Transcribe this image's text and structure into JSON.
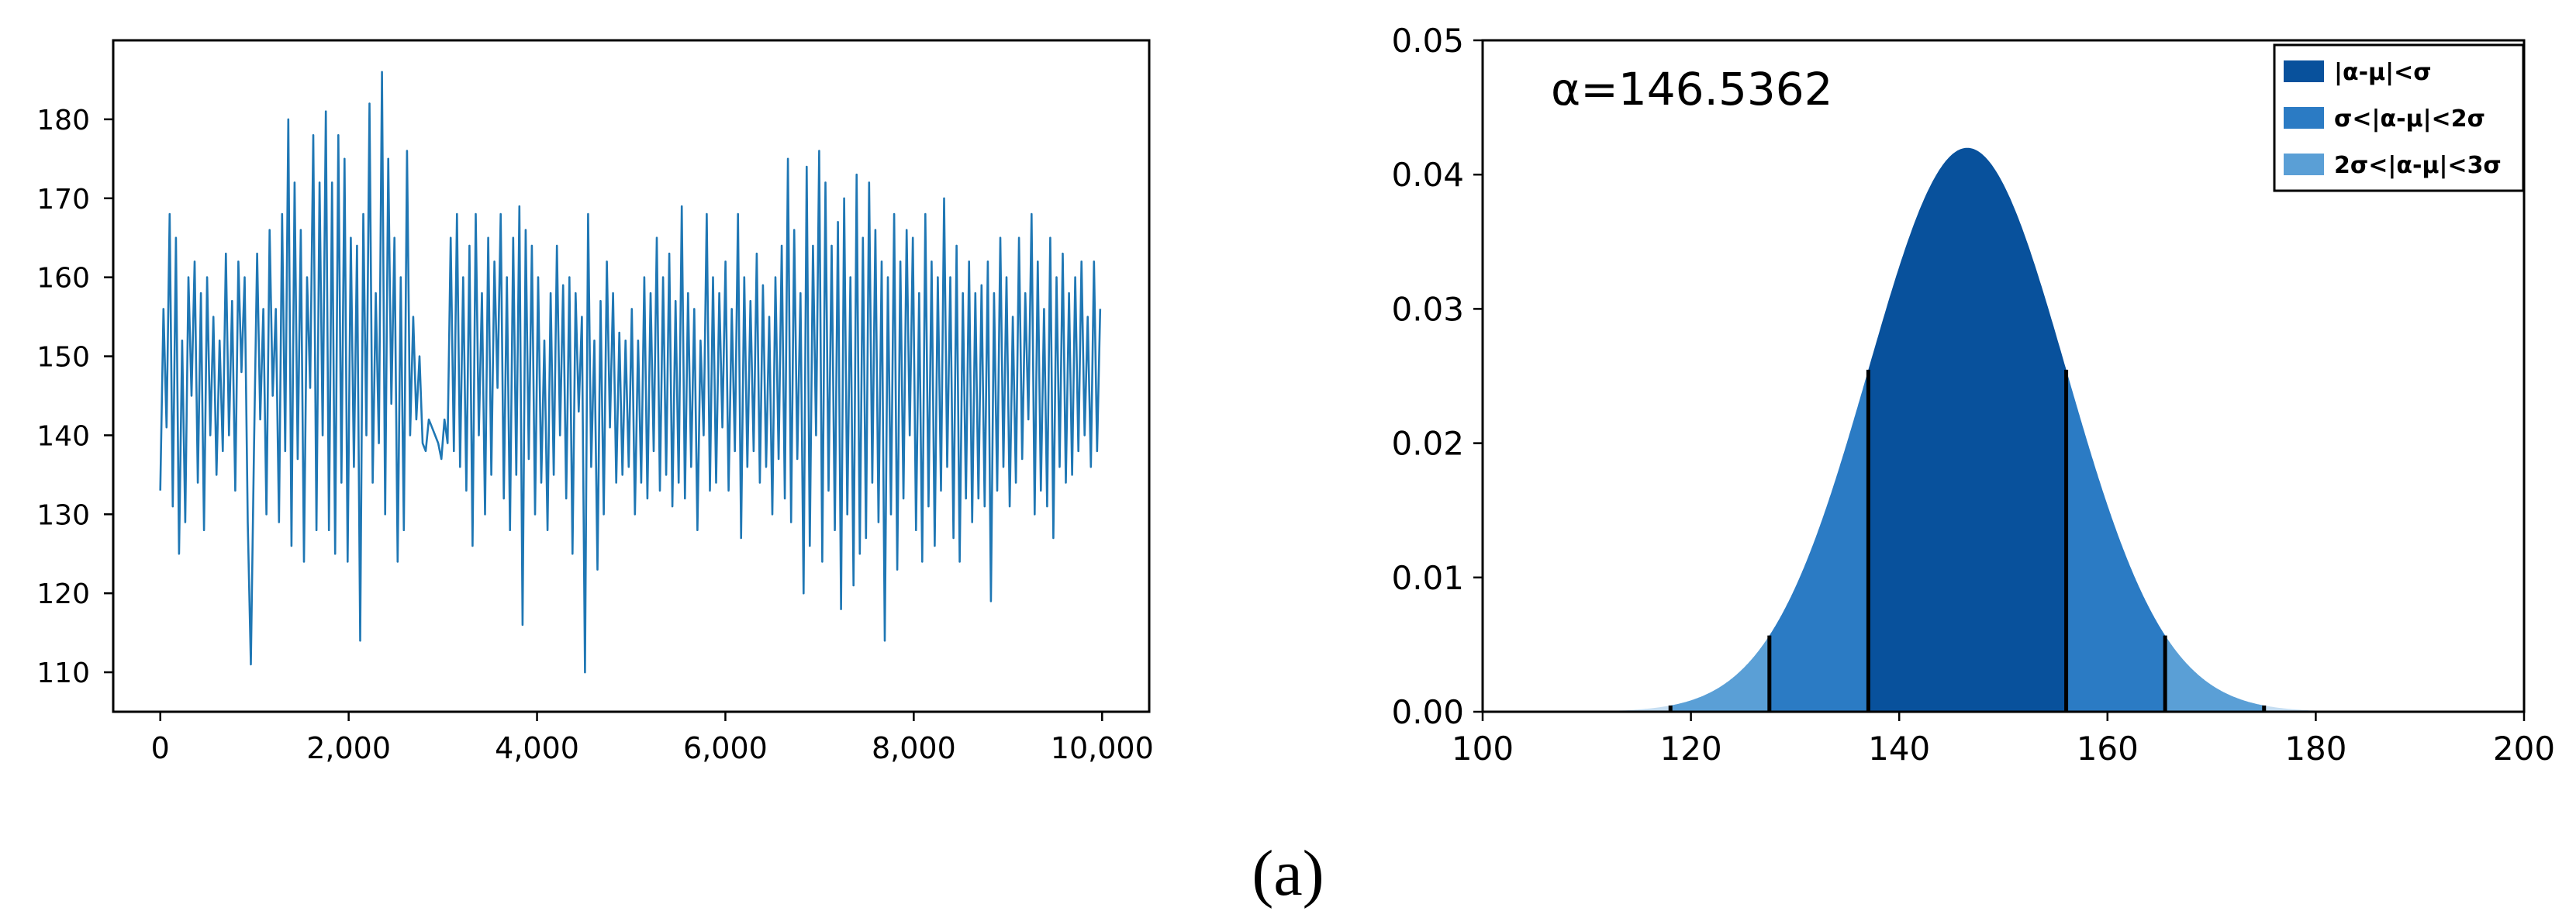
{
  "caption": "(a)",
  "chart_data": [
    {
      "type": "line",
      "title": "",
      "xlabel": "",
      "ylabel": "",
      "xlim": [
        -500,
        10500
      ],
      "ylim": [
        105,
        190
      ],
      "x_ticks": [
        0,
        2000,
        4000,
        6000,
        8000,
        10000
      ],
      "x_tick_labels": [
        "0",
        "2,000",
        "4,000",
        "6,000",
        "8,000",
        "10,000"
      ],
      "y_ticks": [
        110,
        120,
        130,
        140,
        150,
        160,
        170,
        180
      ],
      "y_tick_labels": [
        "110",
        "120",
        "130",
        "140",
        "150",
        "160",
        "170",
        "180"
      ],
      "grid": false,
      "color": "#1f77b4",
      "series": [
        {
          "x_start": 0,
          "x_step": 50,
          "values": [
            133,
            156,
            141,
            168,
            131,
            165,
            125,
            152,
            129,
            160,
            145,
            162,
            134,
            158,
            128,
            160,
            140,
            155,
            135,
            152,
            138,
            163,
            140,
            157,
            133,
            162,
            148,
            160,
            129,
            111,
            138,
            163,
            142,
            156,
            130,
            166,
            145,
            156,
            129,
            168,
            138,
            180,
            126,
            172,
            137,
            166,
            124,
            160,
            146,
            178,
            128,
            172,
            140,
            181,
            128,
            172,
            125,
            178,
            134,
            175,
            124,
            165,
            136,
            164,
            114,
            168,
            140,
            182,
            134,
            158,
            139,
            186,
            130,
            175,
            144,
            165,
            124,
            160,
            128,
            176,
            140,
            155,
            142,
            150,
            139,
            138,
            142,
            141,
            140,
            139,
            137,
            142,
            139,
            165,
            138,
            168,
            136,
            160,
            133,
            164,
            126,
            168,
            140,
            158,
            130,
            165,
            135,
            162,
            146,
            168,
            132,
            160,
            128,
            165,
            135,
            169,
            116,
            166,
            137,
            164,
            130,
            160,
            134,
            152,
            128,
            158,
            135,
            164,
            140,
            159,
            132,
            160,
            125,
            158,
            143,
            155,
            110,
            168,
            136,
            152,
            123,
            157,
            130,
            162,
            141,
            158,
            134,
            153,
            135,
            152,
            136,
            156,
            130,
            152,
            134,
            160,
            132,
            158,
            138,
            165,
            133,
            160,
            135,
            163,
            131,
            157,
            134,
            169,
            132,
            158,
            136,
            156,
            128,
            152,
            140,
            168,
            133,
            160,
            134,
            158,
            141,
            162,
            133,
            156,
            138,
            168,
            127,
            160,
            136,
            157,
            138,
            163,
            134,
            159,
            136,
            155,
            130,
            160,
            137,
            164,
            132,
            175,
            129,
            166,
            137,
            158,
            120,
            174,
            126,
            164,
            140,
            176,
            124,
            172,
            133,
            164,
            128,
            167,
            118,
            170,
            130,
            160,
            121,
            173,
            125,
            165,
            127,
            172,
            134,
            166,
            129,
            162,
            114,
            160,
            130,
            168,
            123,
            162,
            132,
            166,
            140,
            165,
            128,
            158,
            124,
            168,
            131,
            162,
            126,
            160,
            133,
            170,
            136,
            160,
            127,
            164,
            124,
            158,
            132,
            162,
            129,
            158,
            132,
            159,
            131,
            162,
            119,
            158,
            133,
            165,
            136,
            160,
            131,
            155,
            134,
            165,
            137,
            158,
            142,
            168,
            130,
            162,
            133,
            156,
            131,
            165,
            127,
            160,
            136,
            163,
            134,
            158,
            135,
            160,
            138,
            162,
            140,
            155,
            136,
            162,
            138,
            156
          ],
          "x_end": 9980
        }
      ]
    },
    {
      "type": "area",
      "title": "",
      "xlabel": "",
      "ylabel": "",
      "xlim": [
        100,
        200
      ],
      "ylim": [
        0,
        0.05
      ],
      "x_ticks": [
        100,
        120,
        140,
        160,
        180,
        200
      ],
      "x_tick_labels": [
        "100",
        "120",
        "140",
        "160",
        "180",
        "200"
      ],
      "y_ticks": [
        0,
        0.01,
        0.02,
        0.03,
        0.04,
        0.05
      ],
      "y_tick_labels": [
        "0.00",
        "0.01",
        "0.02",
        "0.03",
        "0.04",
        "0.05"
      ],
      "grid": false,
      "annotation": "α=146.5362",
      "mean": 146.5362,
      "sigma": 9.5,
      "legend_position": "top-right",
      "series": [
        {
          "name": "|α-μ|<σ",
          "color": "#08519c",
          "band": 1
        },
        {
          "name": "σ<|α-μ|<2σ",
          "color": "#2b7bc4",
          "band": 2
        },
        {
          "name": "2σ<|α-μ|<3σ",
          "color": "#5a9fd6",
          "band": 3
        }
      ]
    }
  ]
}
